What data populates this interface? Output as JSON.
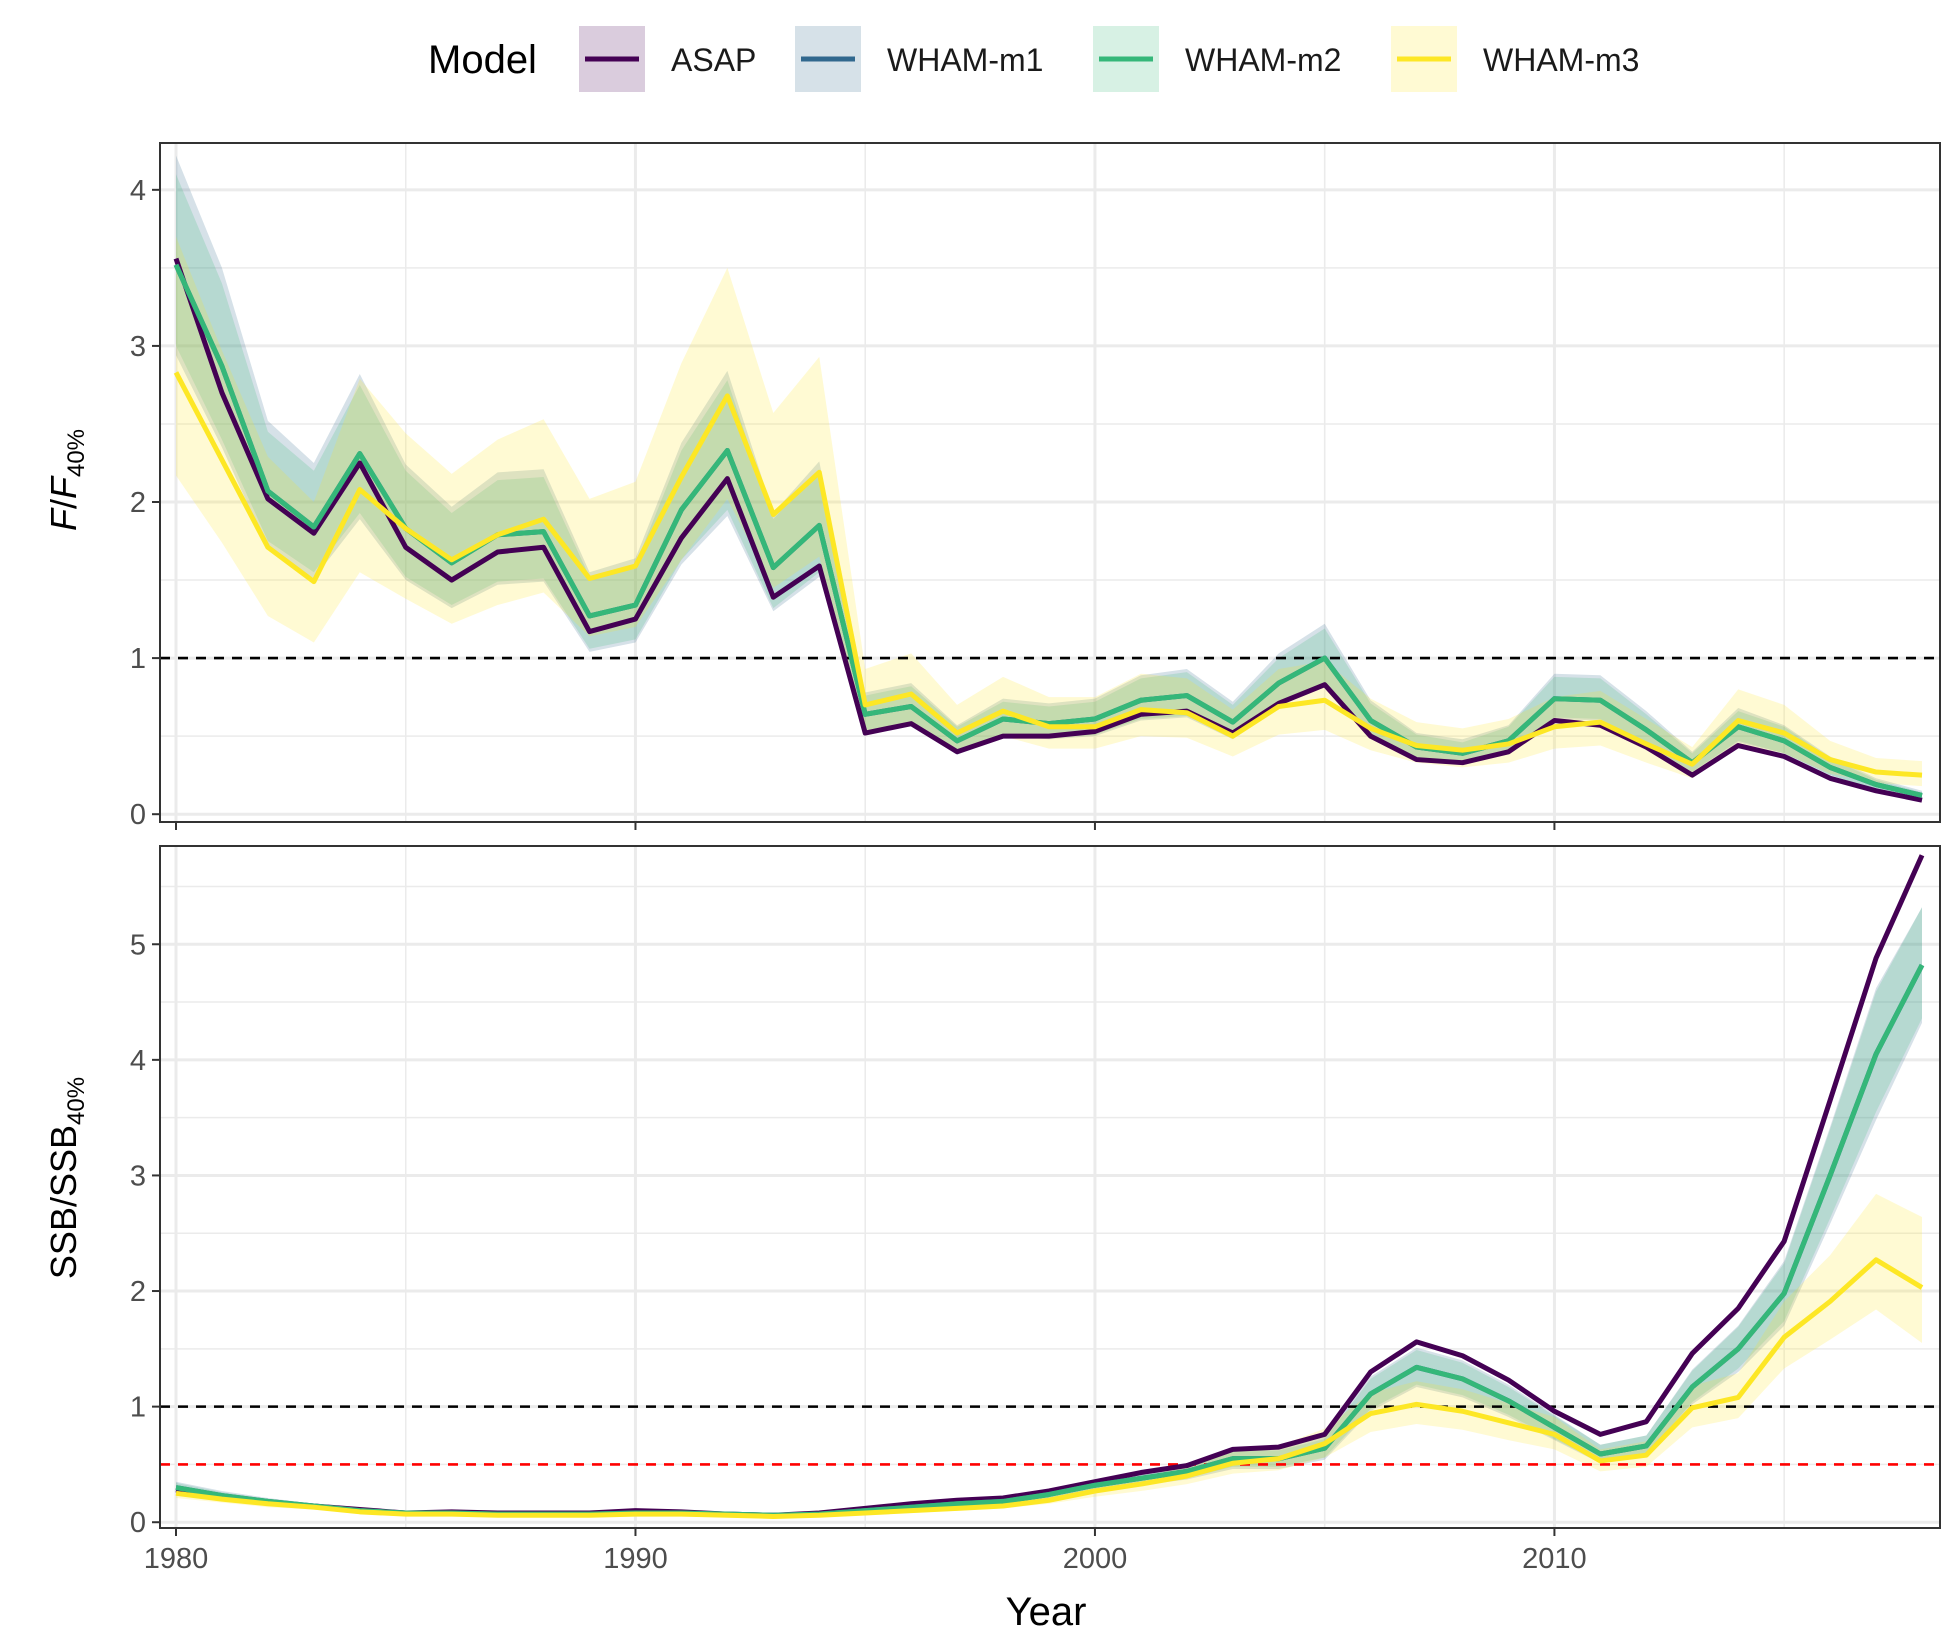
{
  "legend": {
    "title": "Model",
    "items": [
      {
        "label": "ASAP",
        "color": "#440154"
      },
      {
        "label": "WHAM-m1",
        "color": "#31688E"
      },
      {
        "label": "WHAM-m2",
        "color": "#35B779"
      },
      {
        "label": "WHAM-m3",
        "color": "#FDE725"
      }
    ]
  },
  "chart_data": [
    {
      "type": "line",
      "panel": "top",
      "ylabel": "F/F40%",
      "ylabel_parts": {
        "main": "F",
        "sep": "/",
        "ref": "F",
        "sub": "40%"
      },
      "xlabel": "Year",
      "xlim": [
        1980,
        2018
      ],
      "ylim": [
        -0.05,
        4.3
      ],
      "x_ticks": [
        1980,
        1990,
        2000,
        2010
      ],
      "y_ticks": [
        0,
        1,
        2,
        3,
        4
      ],
      "reference_lines": [
        {
          "y": 1,
          "color": "#000000",
          "style": "dashed"
        }
      ],
      "x": [
        1980,
        1981,
        1982,
        1983,
        1984,
        1985,
        1986,
        1987,
        1988,
        1989,
        1990,
        1991,
        1992,
        1993,
        1994,
        1995,
        1996,
        1997,
        1998,
        1999,
        2000,
        2001,
        2002,
        2003,
        2004,
        2005,
        2006,
        2007,
        2008,
        2009,
        2010,
        2011,
        2012,
        2013,
        2014,
        2015,
        2016,
        2017,
        2018
      ],
      "series": [
        {
          "name": "ASAP",
          "color": "#440154",
          "values": [
            3.56,
            2.7,
            2.02,
            1.8,
            2.25,
            1.71,
            1.5,
            1.68,
            1.71,
            1.17,
            1.25,
            1.77,
            2.15,
            1.39,
            1.59,
            0.52,
            0.58,
            0.4,
            0.5,
            0.5,
            0.53,
            0.64,
            0.66,
            0.52,
            0.71,
            0.83,
            0.5,
            0.35,
            0.33,
            0.4,
            0.6,
            0.57,
            0.43,
            0.25,
            0.44,
            0.37,
            0.23,
            0.15,
            0.09
          ]
        },
        {
          "name": "WHAM-m1",
          "color": "#31688E",
          "values": [
            3.52,
            2.87,
            2.07,
            1.84,
            2.31,
            1.83,
            1.61,
            1.79,
            1.81,
            1.27,
            1.34,
            1.95,
            2.33,
            1.58,
            1.85,
            0.64,
            0.69,
            0.47,
            0.61,
            0.58,
            0.61,
            0.73,
            0.76,
            0.59,
            0.84,
            1.0,
            0.6,
            0.43,
            0.39,
            0.47,
            0.74,
            0.73,
            0.54,
            0.33,
            0.56,
            0.47,
            0.3,
            0.19,
            0.12
          ]
        },
        {
          "name": "WHAM-m2",
          "color": "#35B779",
          "values": [
            3.52,
            2.87,
            2.07,
            1.84,
            2.31,
            1.83,
            1.61,
            1.79,
            1.81,
            1.27,
            1.34,
            1.95,
            2.33,
            1.58,
            1.85,
            0.64,
            0.69,
            0.47,
            0.61,
            0.58,
            0.61,
            0.73,
            0.76,
            0.59,
            0.84,
            1.0,
            0.6,
            0.43,
            0.39,
            0.47,
            0.74,
            0.73,
            0.54,
            0.33,
            0.56,
            0.47,
            0.3,
            0.19,
            0.12
          ]
        },
        {
          "name": "WHAM-m3",
          "color": "#FDE725",
          "values": [
            2.83,
            2.27,
            1.71,
            1.49,
            2.08,
            1.83,
            1.63,
            1.79,
            1.89,
            1.51,
            1.59,
            2.16,
            2.68,
            1.92,
            2.19,
            0.7,
            0.77,
            0.52,
            0.66,
            0.56,
            0.56,
            0.67,
            0.65,
            0.5,
            0.69,
            0.73,
            0.55,
            0.44,
            0.41,
            0.45,
            0.56,
            0.59,
            0.45,
            0.32,
            0.6,
            0.52,
            0.35,
            0.27,
            0.25
          ]
        }
      ],
      "bands": [
        {
          "name": "WHAM-m1",
          "color": "#31688E",
          "lower": [
            2.94,
            2.35,
            1.7,
            1.51,
            1.89,
            1.5,
            1.32,
            1.47,
            1.49,
            1.04,
            1.1,
            1.6,
            1.91,
            1.3,
            1.52,
            0.53,
            0.57,
            0.38,
            0.5,
            0.48,
            0.5,
            0.6,
            0.62,
            0.48,
            0.69,
            0.82,
            0.49,
            0.35,
            0.32,
            0.39,
            0.61,
            0.6,
            0.44,
            0.27,
            0.46,
            0.39,
            0.25,
            0.16,
            0.1
          ],
          "upper": [
            4.22,
            3.5,
            2.52,
            2.25,
            2.82,
            2.24,
            1.97,
            2.19,
            2.21,
            1.55,
            1.64,
            2.38,
            2.84,
            1.93,
            2.26,
            0.78,
            0.84,
            0.57,
            0.74,
            0.71,
            0.74,
            0.89,
            0.93,
            0.72,
            1.03,
            1.22,
            0.73,
            0.52,
            0.48,
            0.57,
            0.9,
            0.89,
            0.66,
            0.4,
            0.68,
            0.57,
            0.37,
            0.23,
            0.15
          ]
        },
        {
          "name": "WHAM-m2",
          "color": "#35B779",
          "lower": [
            3.0,
            2.4,
            1.75,
            1.55,
            1.93,
            1.52,
            1.34,
            1.49,
            1.51,
            1.06,
            1.12,
            1.63,
            1.95,
            1.32,
            1.55,
            0.54,
            0.58,
            0.39,
            0.51,
            0.49,
            0.51,
            0.61,
            0.63,
            0.49,
            0.7,
            0.84,
            0.5,
            0.36,
            0.33,
            0.39,
            0.62,
            0.61,
            0.45,
            0.27,
            0.47,
            0.39,
            0.25,
            0.16,
            0.1
          ],
          "upper": [
            4.1,
            3.4,
            2.45,
            2.2,
            2.75,
            2.2,
            1.93,
            2.14,
            2.16,
            1.52,
            1.6,
            2.33,
            2.78,
            1.89,
            2.21,
            0.76,
            0.82,
            0.56,
            0.72,
            0.69,
            0.72,
            0.87,
            0.91,
            0.7,
            1.0,
            1.19,
            0.71,
            0.51,
            0.46,
            0.56,
            0.88,
            0.87,
            0.64,
            0.39,
            0.66,
            0.56,
            0.36,
            0.22,
            0.14
          ]
        },
        {
          "name": "WHAM-m3",
          "color": "#FDE725",
          "lower": [
            2.17,
            1.74,
            1.27,
            1.1,
            1.55,
            1.38,
            1.22,
            1.34,
            1.42,
            1.14,
            1.2,
            1.63,
            2.02,
            1.45,
            1.65,
            0.53,
            0.58,
            0.39,
            0.5,
            0.42,
            0.42,
            0.5,
            0.49,
            0.37,
            0.51,
            0.54,
            0.41,
            0.33,
            0.3,
            0.33,
            0.42,
            0.44,
            0.33,
            0.23,
            0.45,
            0.39,
            0.26,
            0.2,
            0.18
          ],
          "upper": [
            3.7,
            2.97,
            2.29,
            2.0,
            2.79,
            2.44,
            2.18,
            2.4,
            2.53,
            2.02,
            2.13,
            2.89,
            3.5,
            2.57,
            2.93,
            0.93,
            1.03,
            0.7,
            0.88,
            0.75,
            0.75,
            0.9,
            0.87,
            0.67,
            0.93,
            0.98,
            0.74,
            0.59,
            0.55,
            0.61,
            0.75,
            0.79,
            0.61,
            0.43,
            0.8,
            0.7,
            0.47,
            0.36,
            0.34
          ]
        }
      ]
    },
    {
      "type": "line",
      "panel": "bottom",
      "ylabel": "SSB/SSB40%",
      "ylabel_parts": {
        "main": "SSB",
        "sep": "/",
        "ref": "SSB",
        "sub": "40%"
      },
      "xlabel": "Year",
      "xlim": [
        1980,
        2018
      ],
      "ylim": [
        -0.05,
        5.85
      ],
      "x_ticks": [
        1980,
        1990,
        2000,
        2010
      ],
      "y_ticks": [
        0,
        1,
        2,
        3,
        4,
        5
      ],
      "reference_lines": [
        {
          "y": 1,
          "color": "#000000",
          "style": "dashed"
        },
        {
          "y": 0.5,
          "color": "#FF0000",
          "style": "dashed"
        }
      ],
      "x": [
        1980,
        1981,
        1982,
        1983,
        1984,
        1985,
        1986,
        1987,
        1988,
        1989,
        1990,
        1991,
        1992,
        1993,
        1994,
        1995,
        1996,
        1997,
        1998,
        1999,
        2000,
        2001,
        2002,
        2003,
        2004,
        2005,
        2006,
        2007,
        2008,
        2009,
        2010,
        2011,
        2012,
        2013,
        2014,
        2015,
        2016,
        2017,
        2018
      ],
      "series": [
        {
          "name": "ASAP",
          "color": "#440154",
          "values": [
            0.28,
            0.22,
            0.17,
            0.14,
            0.11,
            0.08,
            0.09,
            0.08,
            0.08,
            0.08,
            0.1,
            0.09,
            0.07,
            0.06,
            0.08,
            0.12,
            0.16,
            0.19,
            0.21,
            0.27,
            0.35,
            0.43,
            0.49,
            0.63,
            0.65,
            0.76,
            1.3,
            1.56,
            1.44,
            1.23,
            0.96,
            0.76,
            0.87,
            1.46,
            1.85,
            2.43,
            3.65,
            4.88,
            5.77
          ]
        },
        {
          "name": "WHAM-m1",
          "color": "#31688E",
          "values": [
            0.3,
            0.23,
            0.18,
            0.14,
            0.1,
            0.08,
            0.08,
            0.07,
            0.07,
            0.07,
            0.08,
            0.08,
            0.07,
            0.06,
            0.07,
            0.1,
            0.13,
            0.16,
            0.18,
            0.24,
            0.32,
            0.38,
            0.44,
            0.55,
            0.55,
            0.64,
            1.11,
            1.34,
            1.24,
            1.05,
            0.82,
            0.59,
            0.66,
            1.17,
            1.5,
            1.98,
            3.0,
            4.05,
            4.82
          ]
        },
        {
          "name": "WHAM-m2",
          "color": "#35B779",
          "values": [
            0.3,
            0.23,
            0.18,
            0.14,
            0.1,
            0.08,
            0.08,
            0.07,
            0.07,
            0.07,
            0.08,
            0.08,
            0.07,
            0.06,
            0.07,
            0.1,
            0.13,
            0.16,
            0.18,
            0.24,
            0.32,
            0.38,
            0.44,
            0.55,
            0.55,
            0.64,
            1.11,
            1.34,
            1.24,
            1.05,
            0.82,
            0.59,
            0.66,
            1.17,
            1.5,
            1.98,
            3.0,
            4.05,
            4.82
          ]
        },
        {
          "name": "WHAM-m3",
          "color": "#FDE725",
          "values": [
            0.25,
            0.2,
            0.16,
            0.13,
            0.09,
            0.07,
            0.07,
            0.06,
            0.06,
            0.06,
            0.07,
            0.07,
            0.06,
            0.05,
            0.06,
            0.08,
            0.1,
            0.12,
            0.14,
            0.19,
            0.27,
            0.33,
            0.4,
            0.51,
            0.55,
            0.68,
            0.94,
            1.02,
            0.96,
            0.86,
            0.76,
            0.53,
            0.58,
            0.99,
            1.08,
            1.6,
            1.91,
            2.27,
            2.03
          ]
        }
      ],
      "bands": [
        {
          "name": "WHAM-m1",
          "color": "#31688E",
          "lower": [
            0.25,
            0.19,
            0.15,
            0.12,
            0.08,
            0.07,
            0.07,
            0.06,
            0.06,
            0.06,
            0.07,
            0.07,
            0.06,
            0.05,
            0.06,
            0.08,
            0.11,
            0.13,
            0.15,
            0.2,
            0.27,
            0.32,
            0.37,
            0.46,
            0.46,
            0.54,
            0.96,
            1.17,
            1.08,
            0.91,
            0.71,
            0.51,
            0.57,
            1.02,
            1.3,
            1.7,
            2.58,
            3.48,
            4.32
          ]
        },
        {
          "name": "WHAM-m2",
          "color": "#35B779",
          "lower": [
            0.26,
            0.2,
            0.16,
            0.12,
            0.09,
            0.07,
            0.07,
            0.06,
            0.06,
            0.06,
            0.07,
            0.07,
            0.06,
            0.05,
            0.06,
            0.09,
            0.11,
            0.14,
            0.16,
            0.21,
            0.28,
            0.33,
            0.38,
            0.48,
            0.48,
            0.56,
            0.98,
            1.19,
            1.1,
            0.93,
            0.72,
            0.52,
            0.58,
            1.04,
            1.33,
            1.74,
            2.63,
            3.55,
            4.36
          ],
          "upper": [
            0.34,
            0.26,
            0.2,
            0.16,
            0.11,
            0.09,
            0.09,
            0.08,
            0.08,
            0.08,
            0.09,
            0.09,
            0.08,
            0.07,
            0.08,
            0.11,
            0.15,
            0.18,
            0.2,
            0.27,
            0.36,
            0.43,
            0.5,
            0.62,
            0.62,
            0.72,
            1.24,
            1.49,
            1.38,
            1.17,
            0.92,
            0.67,
            0.75,
            1.31,
            1.69,
            2.24,
            3.4,
            4.59,
            5.32
          ]
        },
        {
          "name": "WHAM-m3",
          "color": "#FDE725",
          "lower": [
            0.21,
            0.17,
            0.13,
            0.11,
            0.08,
            0.06,
            0.06,
            0.05,
            0.05,
            0.05,
            0.06,
            0.06,
            0.05,
            0.04,
            0.05,
            0.07,
            0.08,
            0.1,
            0.12,
            0.16,
            0.22,
            0.27,
            0.33,
            0.42,
            0.45,
            0.56,
            0.78,
            0.85,
            0.8,
            0.71,
            0.63,
            0.44,
            0.48,
            0.82,
            0.9,
            1.33,
            1.58,
            1.84,
            1.55
          ],
          "upper": [
            0.29,
            0.23,
            0.19,
            0.15,
            0.1,
            0.08,
            0.08,
            0.07,
            0.07,
            0.07,
            0.08,
            0.08,
            0.07,
            0.06,
            0.07,
            0.09,
            0.12,
            0.14,
            0.16,
            0.22,
            0.32,
            0.39,
            0.48,
            0.61,
            0.66,
            0.81,
            1.12,
            1.22,
            1.15,
            1.03,
            0.91,
            0.63,
            0.7,
            1.18,
            1.29,
            1.91,
            2.31,
            2.84,
            2.64
          ]
        }
      ]
    }
  ]
}
